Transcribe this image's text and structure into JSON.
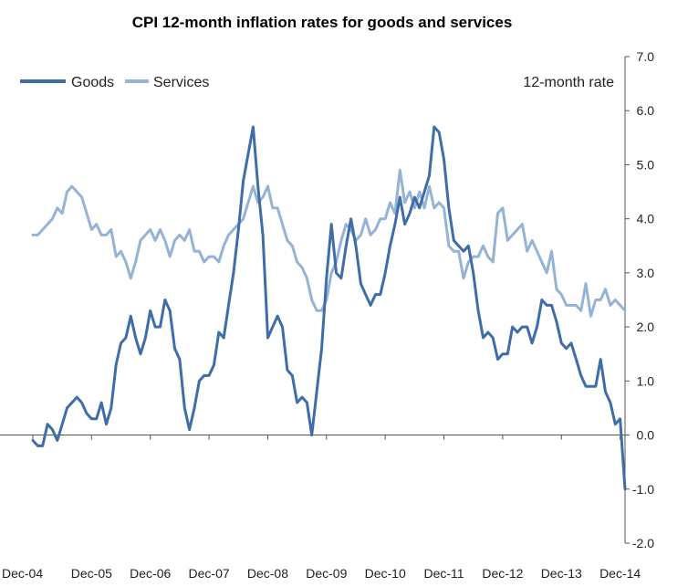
{
  "chart_data": {
    "type": "line",
    "title": "CPI 12-month inflation rates for goods and services",
    "annotation": "12-month rate",
    "xlabel": "",
    "ylabel": "",
    "ylim": [
      -2.0,
      7.0
    ],
    "y_ticks": [
      "7.0",
      "6.0",
      "5.0",
      "4.0",
      "3.0",
      "2.0",
      "1.0",
      "0.0",
      "-1.0",
      "-2.0"
    ],
    "y_tick_values": [
      7,
      6,
      5,
      4,
      3,
      2,
      1,
      0,
      -1,
      -2
    ],
    "x_tick_labels": [
      "Dec-04",
      "Dec-05",
      "Dec-06",
      "Dec-07",
      "Dec-08",
      "Dec-09",
      "Dec-10",
      "Dec-11",
      "Dec-12",
      "Dec-13",
      "Dec-14"
    ],
    "x_tick_index": [
      0,
      12,
      24,
      36,
      48,
      60,
      72,
      84,
      96,
      108,
      120
    ],
    "x_range": [
      0,
      121
    ],
    "grid": false,
    "y_axis_side": "right",
    "legend_position": "top-left",
    "series": [
      {
        "name": "Goods",
        "color": "#3e6da8",
        "values": [
          -0.1,
          -0.2,
          -0.2,
          0.2,
          0.1,
          -0.1,
          0.2,
          0.5,
          0.6,
          0.7,
          0.6,
          0.4,
          0.3,
          0.3,
          0.6,
          0.2,
          0.5,
          1.3,
          1.7,
          1.8,
          2.2,
          1.8,
          1.5,
          1.8,
          2.3,
          2.0,
          2.0,
          2.5,
          2.3,
          1.6,
          1.4,
          0.5,
          0.1,
          0.5,
          1.0,
          1.1,
          1.1,
          1.3,
          1.9,
          1.8,
          2.4,
          3.0,
          3.8,
          4.7,
          5.2,
          5.7,
          4.6,
          3.7,
          1.8,
          2.0,
          2.2,
          2.0,
          1.2,
          1.1,
          0.6,
          0.7,
          0.6,
          0.0,
          0.8,
          1.6,
          2.9,
          3.9,
          3.0,
          2.9,
          3.5,
          4.0,
          3.5,
          2.8,
          2.6,
          2.4,
          2.6,
          2.6,
          3.0,
          3.5,
          3.9,
          4.4,
          3.9,
          4.1,
          4.4,
          4.2,
          4.5,
          4.8,
          5.7,
          5.6,
          5.1,
          4.2,
          3.6,
          3.5,
          3.4,
          3.5,
          3.0,
          2.3,
          1.8,
          1.9,
          1.8,
          1.4,
          1.5,
          1.5,
          2.0,
          1.9,
          2.0,
          2.0,
          1.7,
          2.0,
          2.5,
          2.4,
          2.4,
          2.1,
          1.7,
          1.6,
          1.7,
          1.4,
          1.1,
          0.9,
          0.9,
          0.9,
          1.4,
          0.8,
          0.6,
          0.2,
          0.3,
          -1.0
        ]
      },
      {
        "name": "Services",
        "color": "#95b3d7",
        "values": [
          3.7,
          3.7,
          3.8,
          3.9,
          4.0,
          4.2,
          4.1,
          4.5,
          4.6,
          4.5,
          4.4,
          4.1,
          3.8,
          3.9,
          3.7,
          3.7,
          3.8,
          3.3,
          3.4,
          3.2,
          2.9,
          3.2,
          3.6,
          3.7,
          3.8,
          3.6,
          3.8,
          3.6,
          3.3,
          3.6,
          3.7,
          3.6,
          3.8,
          3.4,
          3.4,
          3.2,
          3.3,
          3.3,
          3.2,
          3.5,
          3.7,
          3.8,
          3.9,
          4.0,
          4.3,
          4.6,
          4.3,
          4.4,
          4.6,
          4.2,
          4.2,
          3.9,
          3.6,
          3.5,
          3.2,
          3.1,
          2.9,
          2.5,
          2.3,
          2.3,
          2.5,
          3.0,
          3.2,
          3.6,
          3.9,
          3.8,
          3.6,
          3.7,
          4.0,
          3.7,
          3.8,
          4.0,
          4.0,
          4.3,
          4.1,
          4.9,
          4.3,
          4.5,
          4.2,
          4.5,
          4.2,
          4.6,
          4.2,
          4.3,
          4.2,
          3.5,
          3.4,
          3.4,
          2.9,
          3.2,
          3.3,
          3.3,
          3.5,
          3.3,
          3.2,
          4.1,
          4.2,
          3.6,
          3.7,
          3.8,
          3.9,
          3.4,
          3.6,
          3.4,
          3.2,
          3.0,
          3.4,
          2.7,
          2.6,
          2.4,
          2.4,
          2.4,
          2.3,
          2.8,
          2.2,
          2.5,
          2.5,
          2.7,
          2.4,
          2.5,
          2.4,
          2.3
        ]
      }
    ]
  }
}
